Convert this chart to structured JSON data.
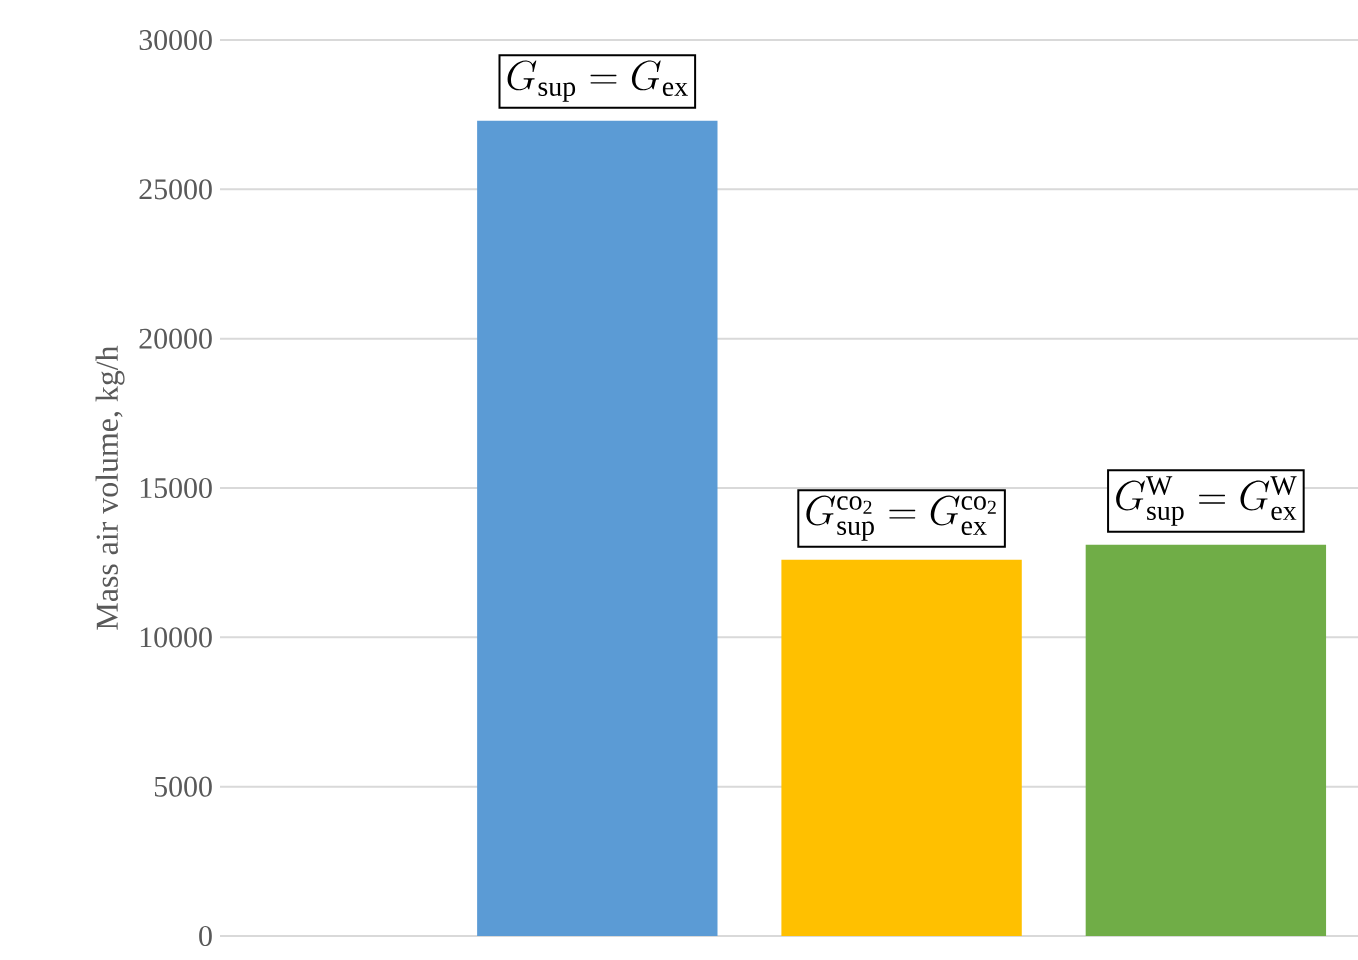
{
  "chart_data": {
    "type": "bar",
    "ylabel": "Mass air volume, kg/h",
    "categories": [
      null,
      null,
      null,
      null
    ],
    "values": [
      null,
      27300,
      12600,
      13100
    ],
    "colors": [
      "#5b9bd5",
      "#5b9bd5",
      "#ffc000",
      "#70ad47"
    ],
    "ylim": [
      0,
      30000
    ],
    "yticks": [
      0,
      5000,
      10000,
      15000,
      20000,
      25000,
      30000
    ],
    "grid": "y",
    "tick_labels": "y",
    "annotations": [
      {
        "text": "G_{\\mathrm{sup}} = G_{\\mathrm{ex}}",
        "y": 27300
      },
      {
        "text": "G_{\\mathrm{sup}}^{\\mathrm{co_2}} = G_{\\mathrm{ex}}^{\\mathrm{co_2}}",
        "y": 12600
      },
      {
        "text": "G_{\\mathrm{sup}}^{\\mathrm{W}} = G_{\\mathrm{ex}}^{\\mathrm{W}}",
        "y": 13100
      }
    ]
  }
}
